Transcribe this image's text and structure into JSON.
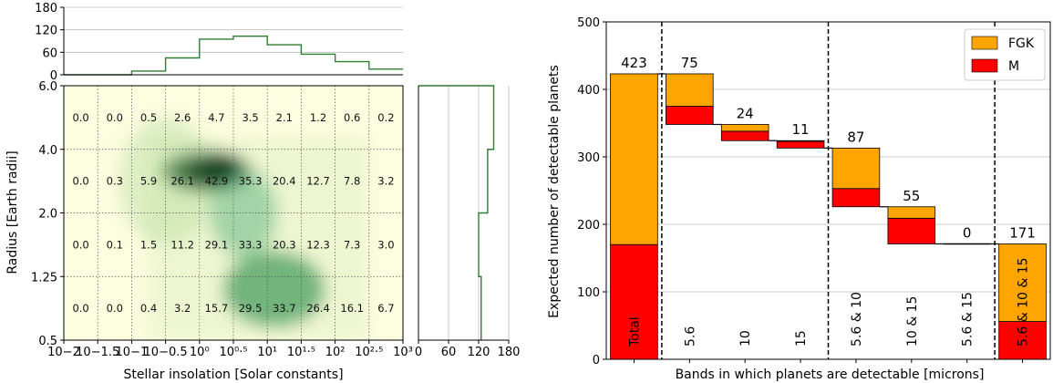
{
  "chart_data": [
    {
      "type": "heatmap",
      "xlabel": "Stellar insolation [Solar constants]",
      "ylabel": "Radius [Earth radii]",
      "x_tick_labels": [
        "10−2",
        "10−1.5",
        "10−1",
        "10−0.5",
        "10⁰",
        "10⁰·⁵",
        "10¹",
        "10¹·⁵",
        "10²",
        "10²·⁵",
        "10³"
      ],
      "y_tick_labels": [
        "0.5",
        "1.25",
        "2.0",
        "4.0",
        "6.0"
      ],
      "rows": [
        [
          "0.0",
          "0.0",
          "0.5",
          "2.6",
          "4.7",
          "3.5",
          "2.1",
          "1.2",
          "0.6",
          "0.2"
        ],
        [
          "0.0",
          "0.3",
          "5.9",
          "26.1",
          "42.9",
          "35.3",
          "20.4",
          "12.7",
          "7.8",
          "3.2"
        ],
        [
          "0.0",
          "0.1",
          "1.5",
          "11.2",
          "29.1",
          "33.3",
          "20.3",
          "12.3",
          "7.3",
          "3.0"
        ],
        [
          "0.0",
          "0.0",
          "0.4",
          "3.2",
          "15.7",
          "29.5",
          "33.7",
          "26.4",
          "16.1",
          "6.7"
        ]
      ],
      "blobs": [
        {
          "cx": 4.2,
          "cy": 1.35,
          "rx": 1.3,
          "ry": 0.32,
          "strength": 1.0
        },
        {
          "cx": 5.3,
          "cy": 2.0,
          "rx": 1.0,
          "ry": 0.7,
          "strength": 0.45
        },
        {
          "cx": 6.2,
          "cy": 3.2,
          "rx": 1.5,
          "ry": 0.6,
          "strength": 0.6
        },
        {
          "cx": 3.0,
          "cy": 1.5,
          "rx": 1.4,
          "ry": 1.0,
          "strength": 0.18
        }
      ]
    },
    {
      "type": "bar",
      "ylim": [
        0,
        180
      ],
      "y_ticks": [
        "0",
        "60",
        "120",
        "180"
      ],
      "values": [
        0,
        10,
        45,
        95,
        103,
        80,
        55,
        35,
        15
      ]
    },
    {
      "type": "bar",
      "orientation": "horizontal",
      "xlim": [
        0,
        180
      ],
      "x_ticks": [
        "0",
        "60",
        "120",
        "180"
      ],
      "values": [
        125,
        120,
        138,
        150,
        0
      ]
    },
    {
      "type": "bar",
      "xlabel": "Bands in which planets are detectable [microns]",
      "ylabel": "Expected number of detectable planets",
      "ylim": [
        0,
        500
      ],
      "y_ticks": [
        "0",
        "100",
        "200",
        "300",
        "400",
        "500"
      ],
      "legend": [
        "FGK",
        "M"
      ],
      "colors": {
        "FGK": "#ffa500",
        "M": "#ff0000"
      },
      "bars": [
        {
          "band": "Total",
          "bottom": 0,
          "m": 170,
          "fgk": 253,
          "label": "423"
        },
        {
          "band": "5.6",
          "bottom": 348,
          "m": 27,
          "fgk": 48,
          "label": "75"
        },
        {
          "band": "10",
          "bottom": 324,
          "m": 14,
          "fgk": 10,
          "label": "24"
        },
        {
          "band": "15",
          "bottom": 313,
          "m": 10,
          "fgk": 1,
          "label": "11"
        },
        {
          "band": "5.6 & 10",
          "bottom": 226,
          "m": 27,
          "fgk": 60,
          "label": "87"
        },
        {
          "band": "10 & 15",
          "bottom": 171,
          "m": 38,
          "fgk": 17,
          "label": "55"
        },
        {
          "band": "5.6 & 15",
          "bottom": 171,
          "m": 0,
          "fgk": 0,
          "label": "0"
        },
        {
          "band": "5.6 & 10 & 15",
          "bottom": 0,
          "m": 56,
          "fgk": 115,
          "label": "171"
        }
      ]
    }
  ]
}
